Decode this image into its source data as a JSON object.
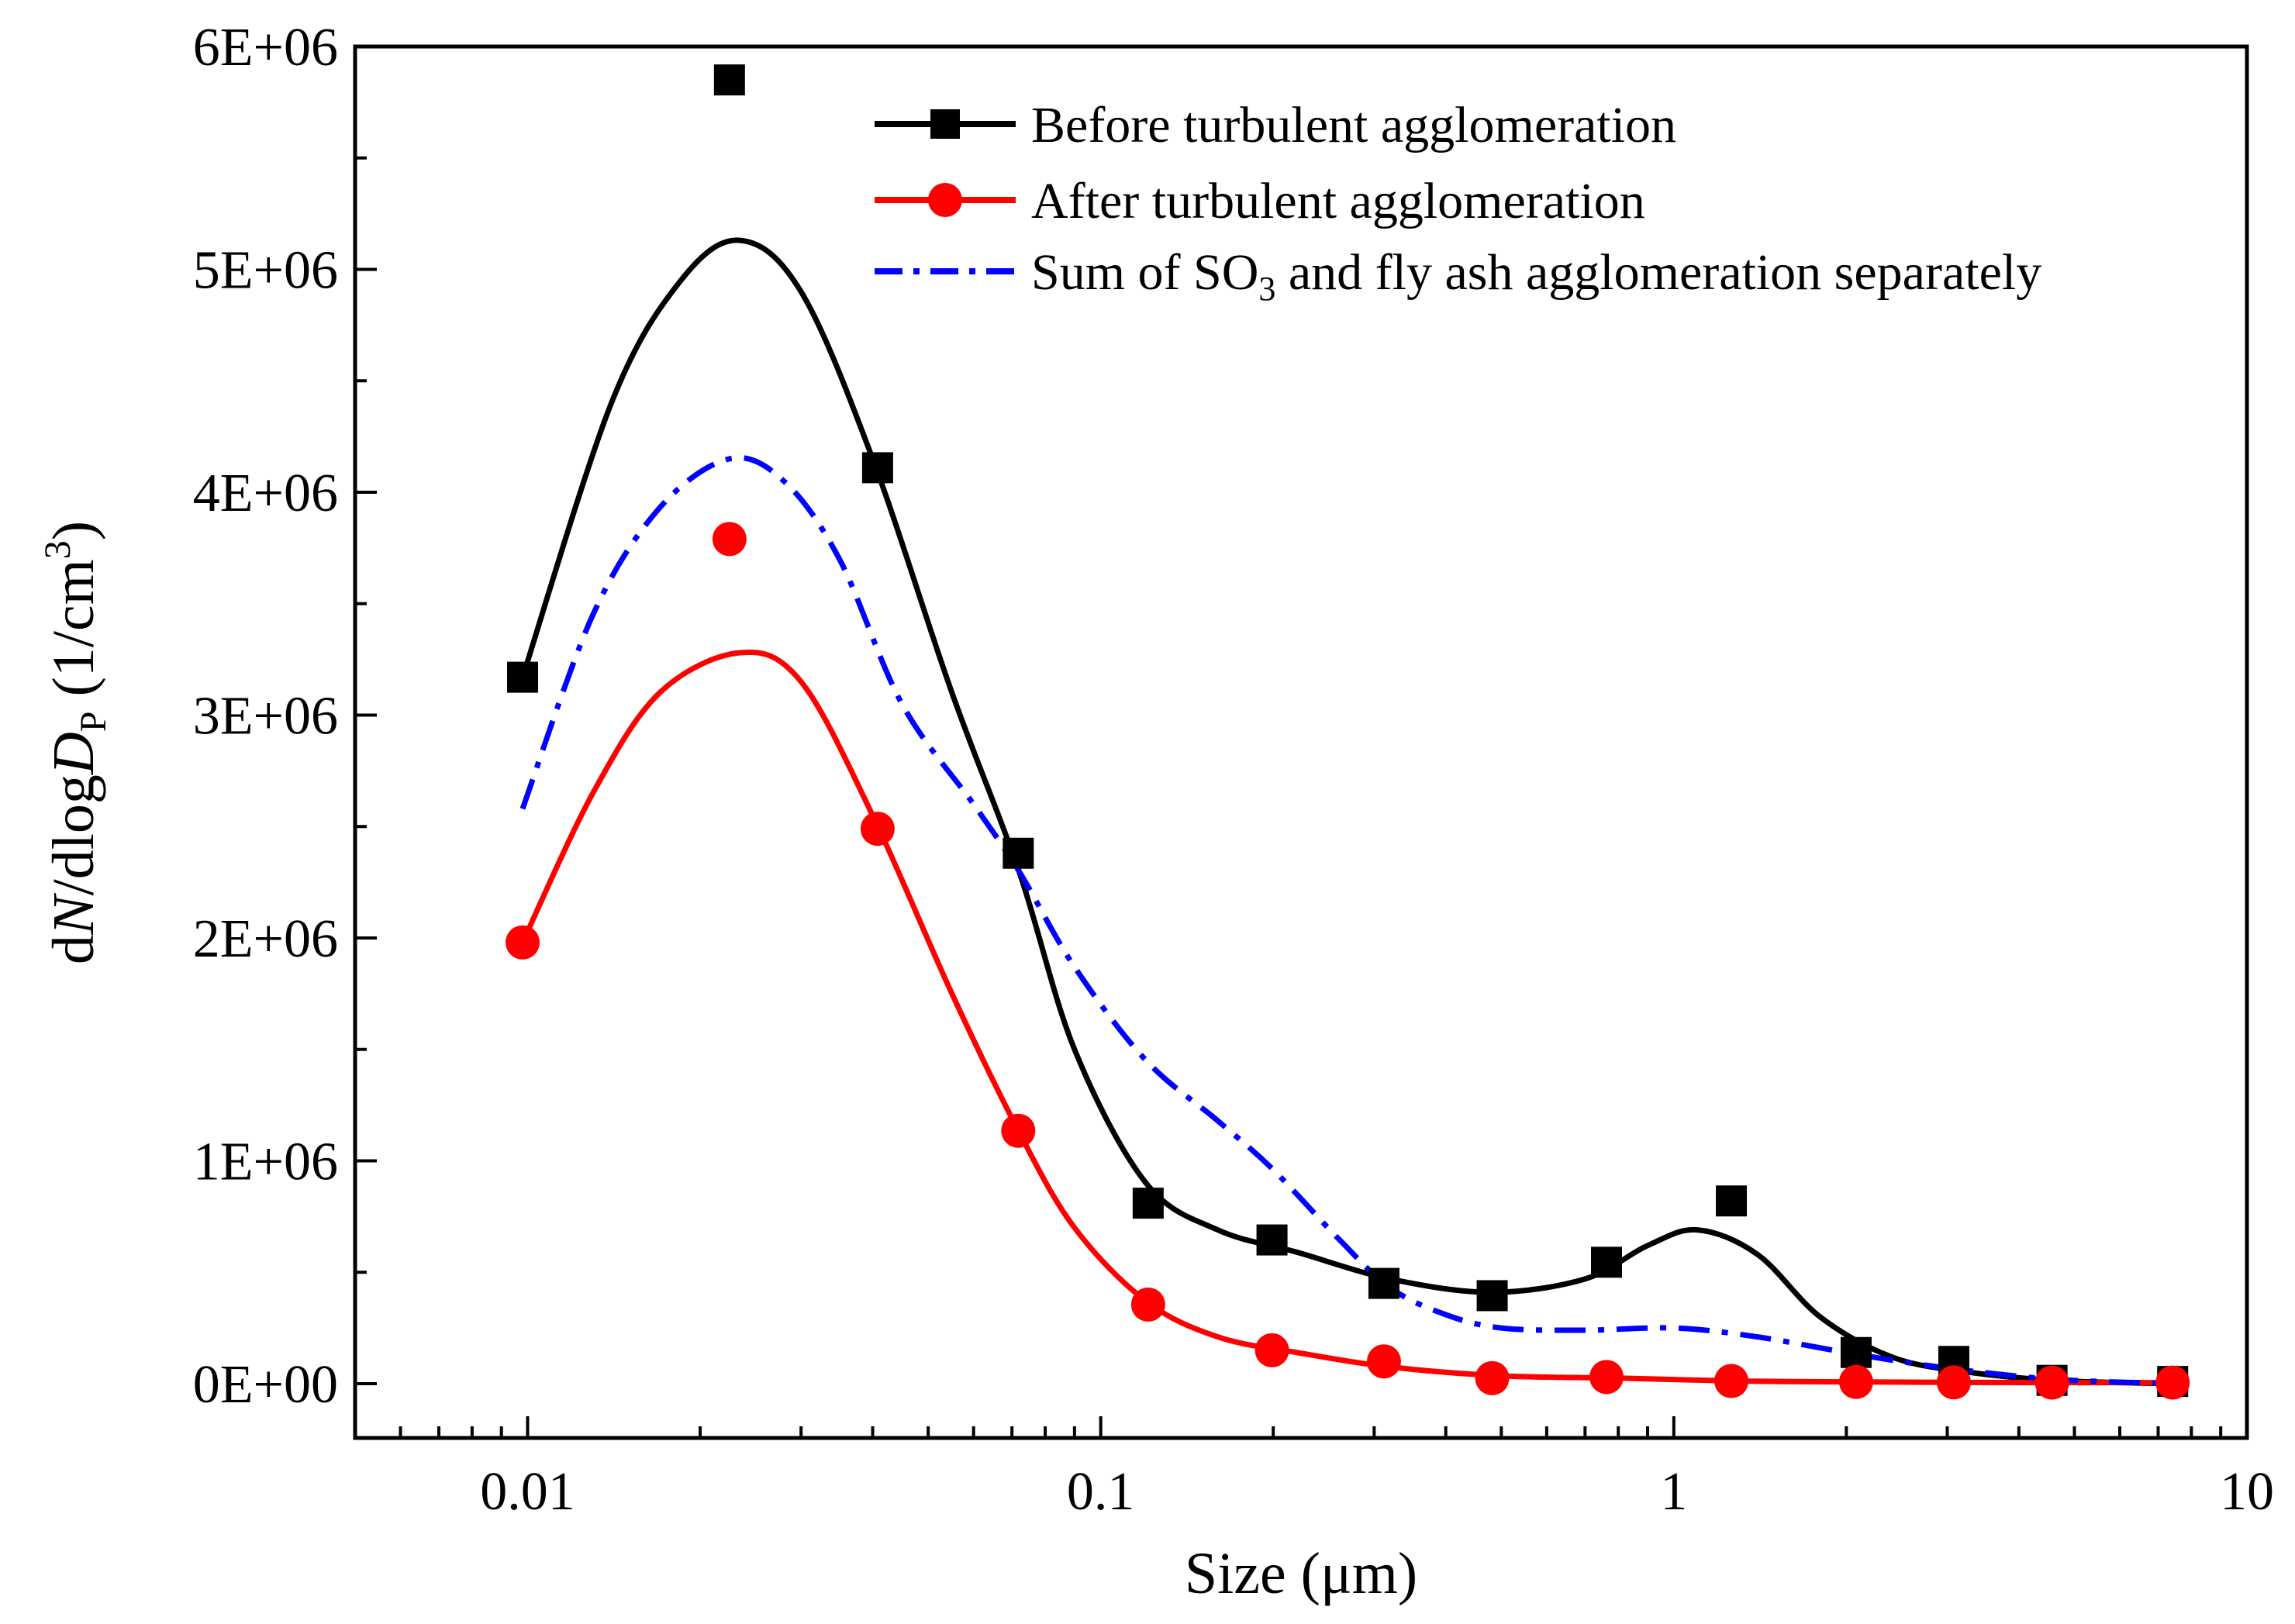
{
  "chart_data": {
    "type": "line",
    "title": "",
    "xlabel": "Size (μm)",
    "ylabel_parts": {
      "d": "d",
      "N": "N",
      "slash_dlog": "/dlog",
      "D": "D",
      "sub_p": "P",
      "unit_open": " (1/cm",
      "unit_sup": "3",
      "unit_close": ")"
    },
    "x_scale": "log",
    "xlim": [
      0.005,
      10
    ],
    "ylim": [
      0,
      6000000
    ],
    "x_ticks": [
      {
        "value": 0.01,
        "label": "0.01"
      },
      {
        "value": 0.1,
        "label": "0.1"
      },
      {
        "value": 1,
        "label": "1"
      },
      {
        "value": 10,
        "label": "10"
      }
    ],
    "y_ticks": [
      {
        "value": 0,
        "label": "0E+00"
      },
      {
        "value": 1000000,
        "label": "1E+06"
      },
      {
        "value": 2000000,
        "label": "2E+06"
      },
      {
        "value": 3000000,
        "label": "3E+06"
      },
      {
        "value": 4000000,
        "label": "4E+06"
      },
      {
        "value": 5000000,
        "label": "5E+06"
      },
      {
        "value": 6000000,
        "label": "6E+06"
      }
    ],
    "legend_position": "top-right",
    "series": [
      {
        "name": "Before turbulent agglomeration",
        "color": "#000000",
        "marker": "square",
        "line_style": "solid",
        "points": [
          [
            0.0098,
            3170000
          ],
          [
            0.0225,
            5850000
          ],
          [
            0.0408,
            4110000
          ],
          [
            0.0718,
            2380000
          ],
          [
            0.121,
            810000
          ],
          [
            0.199,
            645000
          ],
          [
            0.312,
            450000
          ],
          [
            0.482,
            395000
          ],
          [
            0.763,
            545000
          ],
          [
            1.26,
            820000
          ],
          [
            2.08,
            140000
          ],
          [
            3.08,
            100000
          ],
          [
            4.57,
            15000
          ],
          [
            7.42,
            10000
          ]
        ],
        "curve": [
          [
            0.0098,
            3170000
          ],
          [
            0.014,
            4400000
          ],
          [
            0.0185,
            4950000
          ],
          [
            0.0235,
            5130000
          ],
          [
            0.03,
            4900000
          ],
          [
            0.04,
            4150000
          ],
          [
            0.055,
            3100000
          ],
          [
            0.072,
            2300000
          ],
          [
            0.09,
            1500000
          ],
          [
            0.12,
            900000
          ],
          [
            0.16,
            690000
          ],
          [
            0.22,
            590000
          ],
          [
            0.32,
            470000
          ],
          [
            0.48,
            410000
          ],
          [
            0.7,
            470000
          ],
          [
            0.9,
            620000
          ],
          [
            1.1,
            690000
          ],
          [
            1.4,
            580000
          ],
          [
            1.8,
            300000
          ],
          [
            2.4,
            120000
          ],
          [
            3.2,
            55000
          ],
          [
            4.6,
            15000
          ],
          [
            7.42,
            0
          ]
        ]
      },
      {
        "name": "After turbulent agglomeration",
        "color": "#ff0000",
        "marker": "circle",
        "line_style": "solid",
        "points": [
          [
            0.0098,
            1980000
          ],
          [
            0.0225,
            3790000
          ],
          [
            0.0408,
            2490000
          ],
          [
            0.0718,
            1135000
          ],
          [
            0.121,
            355000
          ],
          [
            0.199,
            150000
          ],
          [
            0.312,
            100000
          ],
          [
            0.482,
            25000
          ],
          [
            0.763,
            30000
          ],
          [
            1.26,
            12000
          ],
          [
            2.08,
            8000
          ],
          [
            3.08,
            6000
          ],
          [
            4.57,
            5000
          ],
          [
            7.42,
            5000
          ]
        ],
        "curve": [
          [
            0.0098,
            1980000
          ],
          [
            0.013,
            2650000
          ],
          [
            0.017,
            3100000
          ],
          [
            0.0235,
            3280000
          ],
          [
            0.03,
            3150000
          ],
          [
            0.04,
            2550000
          ],
          [
            0.055,
            1750000
          ],
          [
            0.072,
            1130000
          ],
          [
            0.09,
            700000
          ],
          [
            0.12,
            370000
          ],
          [
            0.16,
            210000
          ],
          [
            0.22,
            140000
          ],
          [
            0.32,
            75000
          ],
          [
            0.5,
            35000
          ],
          [
            0.8,
            25000
          ],
          [
            1.3,
            12000
          ],
          [
            2.1,
            8000
          ],
          [
            3.1,
            6000
          ],
          [
            4.6,
            5000
          ],
          [
            7.42,
            5000
          ]
        ]
      },
      {
        "name_prefix": "Sum of SO",
        "name_sub": "3",
        "name_suffix": " and fly ash agglomeration separately",
        "color": "#0000ff",
        "marker": "none",
        "line_style": "dashdot",
        "points": [],
        "curve": [
          [
            0.0098,
            2580000
          ],
          [
            0.013,
            3450000
          ],
          [
            0.017,
            3930000
          ],
          [
            0.0225,
            4150000
          ],
          [
            0.028,
            4050000
          ],
          [
            0.035,
            3700000
          ],
          [
            0.045,
            3050000
          ],
          [
            0.06,
            2600000
          ],
          [
            0.072,
            2300000
          ],
          [
            0.09,
            1870000
          ],
          [
            0.12,
            1450000
          ],
          [
            0.16,
            1180000
          ],
          [
            0.2,
            960000
          ],
          [
            0.26,
            650000
          ],
          [
            0.32,
            430000
          ],
          [
            0.4,
            310000
          ],
          [
            0.5,
            250000
          ],
          [
            0.7,
            240000
          ],
          [
            1.0,
            250000
          ],
          [
            1.4,
            210000
          ],
          [
            2.1,
            130000
          ],
          [
            3.0,
            70000
          ],
          [
            4.6,
            20000
          ],
          [
            7.42,
            0
          ]
        ]
      }
    ]
  }
}
